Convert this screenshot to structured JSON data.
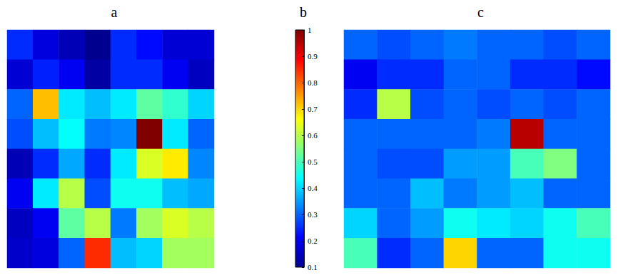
{
  "chart_data": [
    {
      "type": "heatmap",
      "title": "a",
      "tick_labels": false,
      "clim": [
        0.1,
        1
      ],
      "cells": [
        [
          0.25,
          0.18,
          0.14,
          0.1,
          0.25,
          0.22,
          0.17,
          0.17
        ],
        [
          0.17,
          0.24,
          0.2,
          0.12,
          0.25,
          0.25,
          0.2,
          0.15
        ],
        [
          0.3,
          0.72,
          0.42,
          0.38,
          0.42,
          0.52,
          0.48,
          0.4
        ],
        [
          0.28,
          0.38,
          0.44,
          0.32,
          0.33,
          1.0,
          0.42,
          0.3
        ],
        [
          0.14,
          0.25,
          0.36,
          0.25,
          0.42,
          0.63,
          0.68,
          0.33
        ],
        [
          0.2,
          0.42,
          0.6,
          0.28,
          0.45,
          0.45,
          0.38,
          0.36
        ],
        [
          0.15,
          0.2,
          0.52,
          0.6,
          0.32,
          0.58,
          0.63,
          0.6
        ],
        [
          0.16,
          0.18,
          0.3,
          0.85,
          0.38,
          0.4,
          0.58,
          0.58
        ]
      ]
    },
    {
      "type": "colorbar",
      "title": "b",
      "clim": [
        0.1,
        1
      ],
      "cticks": [
        0.1,
        0.2,
        0.3,
        0.4,
        0.5,
        0.6,
        0.7,
        0.8,
        0.9,
        1
      ]
    },
    {
      "type": "heatmap",
      "title": "c",
      "tick_labels": false,
      "clim": [
        0.1,
        1
      ],
      "cells": [
        [
          0.3,
          0.28,
          0.3,
          0.32,
          0.3,
          0.3,
          0.28,
          0.3
        ],
        [
          0.2,
          0.25,
          0.25,
          0.3,
          0.3,
          0.25,
          0.25,
          0.22
        ],
        [
          0.25,
          0.6,
          0.28,
          0.3,
          0.28,
          0.3,
          0.28,
          0.3
        ],
        [
          0.3,
          0.3,
          0.3,
          0.3,
          0.32,
          0.95,
          0.3,
          0.3
        ],
        [
          0.3,
          0.28,
          0.28,
          0.35,
          0.35,
          0.5,
          0.55,
          0.3
        ],
        [
          0.3,
          0.3,
          0.38,
          0.32,
          0.35,
          0.38,
          0.3,
          0.3
        ],
        [
          0.4,
          0.3,
          0.35,
          0.45,
          0.42,
          0.4,
          0.45,
          0.5
        ],
        [
          0.5,
          0.25,
          0.3,
          0.7,
          0.3,
          0.3,
          0.45,
          0.45
        ]
      ]
    }
  ]
}
